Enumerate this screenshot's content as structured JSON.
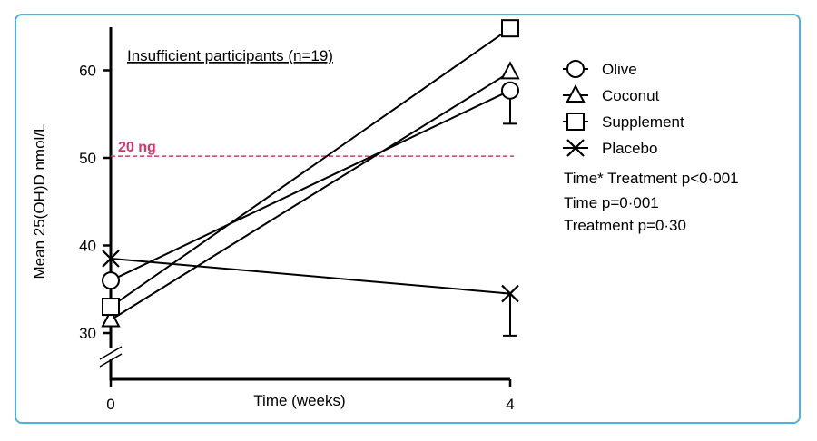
{
  "chart_data": {
    "type": "line",
    "subtitle": "Insufficient participants (n=19)",
    "xlabel": "Time (weeks)",
    "ylabel": "Mean 25(OH)D nmol/L",
    "x": [
      0,
      4
    ],
    "x_ticks": [
      "0",
      "4"
    ],
    "y_ticks": [
      30,
      40,
      50,
      60
    ],
    "ylim": [
      25,
      66
    ],
    "axis_break": true,
    "series": [
      {
        "name": "Olive",
        "marker": "circle",
        "values": [
          36.0,
          57.7
        ],
        "error": [
          null,
          3.8
        ]
      },
      {
        "name": "Coconut",
        "marker": "triangle",
        "values": [
          31.5,
          59.8
        ],
        "error": [
          null,
          null
        ]
      },
      {
        "name": "Supplement",
        "marker": "square",
        "values": [
          33.0,
          64.8
        ],
        "error": [
          null,
          null
        ]
      },
      {
        "name": "Placebo",
        "marker": "x",
        "values": [
          38.5,
          34.5
        ],
        "error": [
          null,
          4.8
        ]
      }
    ],
    "reference_line": {
      "value": 50.2,
      "label": "20 ng",
      "color": "#e0336b"
    },
    "annotations": [
      "Time* Treatment p<0·001",
      "Time p=0·001",
      "Treatment p=0·30"
    ],
    "legend_position": "right"
  }
}
